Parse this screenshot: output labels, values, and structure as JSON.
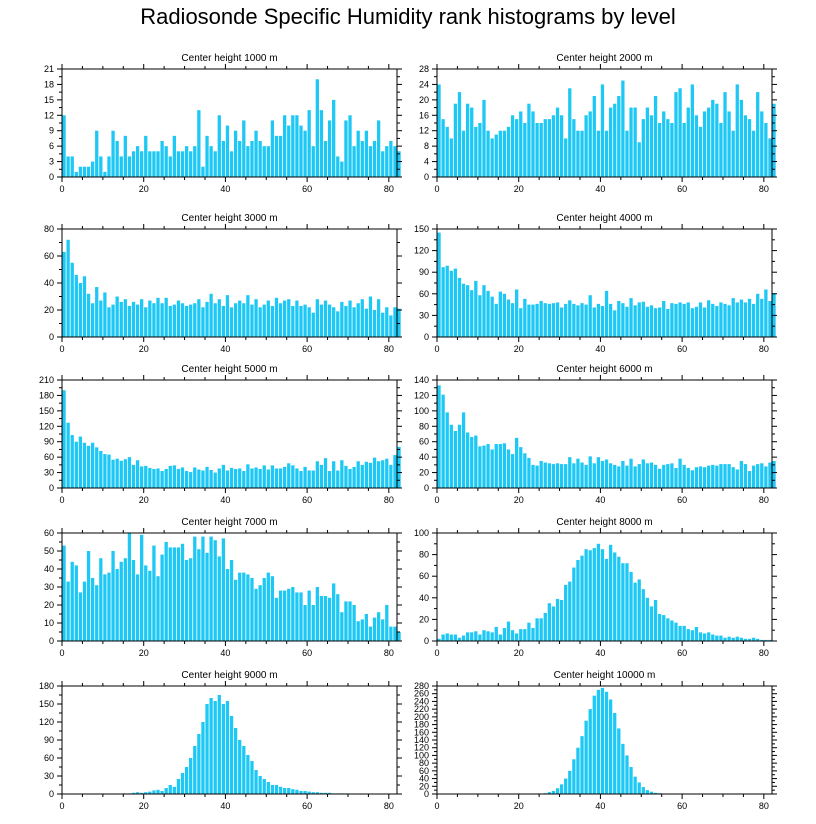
{
  "chart_data": {
    "type": "bar",
    "title": "Radiosonde Specific Humidity rank histograms by level",
    "colors": {
      "bar": "#1ec8f5",
      "axis": "#000000"
    },
    "xlim": [
      0,
      82
    ],
    "xticks": [
      0,
      20,
      40,
      60,
      80
    ],
    "panels": [
      {
        "title": "Center height 1000 m",
        "ylim": [
          0,
          21
        ],
        "yticks": [
          0,
          3,
          6,
          9,
          12,
          15,
          18,
          21
        ],
        "values": [
          12,
          4,
          4,
          1,
          2,
          2,
          2,
          3,
          9,
          4,
          1,
          4,
          9,
          7,
          4,
          8,
          4,
          5,
          6,
          5,
          8,
          5,
          5,
          5,
          7,
          6,
          4,
          8,
          5,
          5,
          6,
          5,
          6,
          13,
          2,
          8,
          6,
          5,
          12,
          7,
          10,
          5,
          9,
          7,
          11,
          6,
          7,
          9,
          7,
          6,
          6,
          11,
          8,
          8,
          12,
          10,
          12,
          12,
          10,
          9,
          13,
          6,
          19,
          13,
          7,
          11,
          15,
          4,
          3,
          11,
          12,
          6,
          9,
          7,
          9,
          6,
          7,
          11,
          5,
          6,
          7,
          6,
          5
        ]
      },
      {
        "title": "Center height 2000 m",
        "ylim": [
          0,
          28
        ],
        "yticks": [
          0,
          4,
          8,
          12,
          16,
          20,
          24,
          28
        ],
        "values": [
          24,
          15,
          13,
          10,
          19,
          22,
          12,
          19,
          18,
          13,
          14,
          20,
          12,
          10,
          11,
          12,
          12,
          13,
          16,
          15,
          17,
          14,
          19,
          17,
          14,
          14,
          15,
          15,
          16,
          18,
          16,
          10,
          23,
          15,
          12,
          12,
          16,
          17,
          21,
          12,
          24,
          12,
          18,
          19,
          21,
          25,
          12,
          18,
          18,
          9,
          15,
          18,
          16,
          21,
          14,
          17,
          15,
          14,
          22,
          23,
          14,
          18,
          24,
          16,
          13,
          17,
          18,
          20,
          19,
          14,
          22,
          17,
          12,
          24,
          20,
          16,
          15,
          12,
          22,
          17,
          14,
          10,
          19
        ]
      },
      {
        "title": "Center height 3000 m",
        "ylim": [
          0,
          80
        ],
        "yticks": [
          0,
          20,
          40,
          60,
          80
        ],
        "values": [
          63,
          72,
          55,
          46,
          40,
          45,
          32,
          25,
          37,
          27,
          33,
          22,
          24,
          30,
          26,
          28,
          23,
          26,
          24,
          28,
          22,
          27,
          25,
          29,
          25,
          29,
          23,
          24,
          27,
          25,
          23,
          24,
          25,
          28,
          22,
          26,
          32,
          25,
          28,
          23,
          31,
          22,
          25,
          27,
          25,
          31,
          24,
          28,
          22,
          24,
          27,
          23,
          29,
          25,
          27,
          28,
          23,
          27,
          23,
          24,
          22,
          18,
          28,
          24,
          27,
          24,
          22,
          19,
          26,
          23,
          27,
          22,
          25,
          28,
          21,
          30,
          20,
          28,
          18,
          22,
          16,
          22,
          21
        ]
      },
      {
        "title": "Center height 4000 m",
        "ylim": [
          0,
          150
        ],
        "yticks": [
          0,
          30,
          60,
          90,
          120,
          150
        ],
        "values": [
          145,
          97,
          99,
          92,
          95,
          82,
          74,
          72,
          65,
          78,
          58,
          72,
          64,
          56,
          46,
          63,
          60,
          52,
          47,
          66,
          40,
          53,
          45,
          45,
          46,
          50,
          47,
          46,
          47,
          48,
          41,
          46,
          51,
          46,
          44,
          47,
          45,
          58,
          41,
          46,
          43,
          64,
          46,
          37,
          50,
          47,
          42,
          54,
          44,
          48,
          49,
          42,
          44,
          40,
          41,
          50,
          39,
          47,
          46,
          48,
          46,
          48,
          40,
          42,
          48,
          41,
          51,
          46,
          43,
          48,
          46,
          44,
          54,
          48,
          52,
          48,
          53,
          46,
          60,
          53,
          66,
          50,
          61
        ]
      },
      {
        "title": "Center height 5000 m",
        "ylim": [
          0,
          210
        ],
        "yticks": [
          0,
          30,
          60,
          90,
          120,
          150,
          180,
          210
        ],
        "values": [
          190,
          127,
          103,
          90,
          100,
          88,
          82,
          88,
          79,
          72,
          66,
          65,
          55,
          57,
          53,
          56,
          60,
          45,
          54,
          42,
          43,
          39,
          37,
          38,
          33,
          37,
          43,
          44,
          37,
          40,
          33,
          31,
          40,
          36,
          34,
          41,
          35,
          30,
          38,
          45,
          34,
          39,
          37,
          38,
          33,
          46,
          38,
          40,
          37,
          44,
          36,
          44,
          38,
          38,
          41,
          48,
          44,
          38,
          33,
          41,
          34,
          34,
          52,
          45,
          58,
          33,
          52,
          34,
          54,
          43,
          37,
          41,
          52,
          45,
          51,
          49,
          59,
          52,
          54,
          57,
          45,
          64,
          80
        ]
      },
      {
        "title": "Center height 6000 m",
        "ylim": [
          0,
          140
        ],
        "yticks": [
          0,
          20,
          40,
          60,
          80,
          100,
          120,
          140
        ],
        "values": [
          133,
          121,
          98,
          82,
          74,
          82,
          98,
          72,
          66,
          68,
          54,
          55,
          57,
          50,
          57,
          57,
          58,
          50,
          44,
          65,
          53,
          45,
          39,
          30,
          29,
          35,
          33,
          32,
          31,
          32,
          31,
          31,
          40,
          32,
          38,
          33,
          30,
          41,
          32,
          40,
          35,
          37,
          32,
          30,
          28,
          35,
          29,
          38,
          28,
          31,
          37,
          32,
          33,
          30,
          25,
          30,
          31,
          32,
          26,
          38,
          30,
          26,
          23,
          27,
          28,
          27,
          29,
          30,
          29,
          31,
          31,
          31,
          27,
          24,
          35,
          31,
          22,
          29,
          31,
          32,
          28,
          33,
          35
        ]
      },
      {
        "title": "Center height 7000 m",
        "ylim": [
          0,
          60
        ],
        "yticks": [
          0,
          10,
          20,
          30,
          40,
          50,
          60
        ],
        "values": [
          53,
          33,
          44,
          42,
          27,
          33,
          50,
          35,
          31,
          46,
          37,
          38,
          50,
          40,
          44,
          46,
          60,
          45,
          37,
          59,
          42,
          39,
          53,
          36,
          48,
          55,
          52,
          52,
          52,
          54,
          45,
          46,
          58,
          51,
          58,
          49,
          58,
          56,
          47,
          57,
          40,
          45,
          34,
          38,
          38,
          37,
          35,
          29,
          31,
          35,
          38,
          36,
          24,
          28,
          28,
          29,
          30,
          27,
          27,
          20,
          28,
          20,
          30,
          25,
          25,
          24,
          32,
          26,
          16,
          22,
          22,
          20,
          11,
          12,
          15,
          8,
          13,
          16,
          12,
          20,
          8,
          8,
          5
        ]
      },
      {
        "title": "Center height 8000 m",
        "ylim": [
          0,
          100
        ],
        "yticks": [
          0,
          20,
          40,
          60,
          80,
          100
        ],
        "values": [
          2,
          6,
          7,
          6,
          6,
          3,
          5,
          8,
          8,
          9,
          6,
          10,
          9,
          8,
          13,
          6,
          12,
          18,
          10,
          7,
          11,
          11,
          17,
          12,
          21,
          21,
          26,
          35,
          32,
          39,
          38,
          52,
          55,
          68,
          75,
          79,
          85,
          84,
          86,
          90,
          85,
          76,
          89,
          82,
          78,
          72,
          72,
          64,
          54,
          57,
          48,
          40,
          32,
          38,
          25,
          24,
          21,
          19,
          17,
          14,
          14,
          11,
          10,
          13,
          8,
          7,
          8,
          6,
          5,
          5,
          3,
          4,
          3,
          4,
          3,
          2,
          2,
          3,
          2,
          1,
          1,
          1
        ]
      },
      {
        "title": "Center height 9000 m",
        "ylim": [
          0,
          180
        ],
        "yticks": [
          0,
          30,
          60,
          90,
          120,
          150,
          180
        ],
        "values": [
          0,
          0,
          0,
          0,
          0,
          0,
          0,
          0,
          0,
          0,
          0,
          0,
          0,
          0,
          0,
          1,
          1,
          2,
          3,
          2,
          3,
          4,
          6,
          7,
          5,
          10,
          15,
          12,
          25,
          35,
          45,
          60,
          80,
          100,
          120,
          150,
          160,
          155,
          165,
          150,
          155,
          130,
          110,
          90,
          80,
          65,
          55,
          40,
          30,
          25,
          20,
          15,
          15,
          12,
          10,
          10,
          8,
          7,
          5,
          5,
          4,
          3,
          3,
          2,
          2,
          2,
          1,
          1,
          1,
          1,
          0,
          0,
          0,
          0,
          0,
          0,
          0,
          0,
          0,
          0,
          0,
          0,
          0
        ]
      },
      {
        "title": "Center height 10000 m",
        "ylim": [
          0,
          280
        ],
        "yticks": [
          0,
          20,
          40,
          60,
          80,
          100,
          120,
          140,
          160,
          180,
          200,
          220,
          240,
          260,
          280
        ],
        "values": [
          0,
          0,
          0,
          0,
          0,
          0,
          0,
          0,
          0,
          0,
          0,
          0,
          0,
          0,
          0,
          0,
          0,
          0,
          0,
          0,
          0,
          0,
          0,
          0,
          0,
          1,
          2,
          5,
          8,
          15,
          25,
          40,
          60,
          90,
          120,
          150,
          190,
          220,
          255,
          270,
          275,
          265,
          245,
          210,
          170,
          130,
          100,
          70,
          45,
          30,
          18,
          10,
          6,
          3,
          2,
          1,
          0,
          0,
          0,
          0,
          0,
          0,
          0,
          0,
          0,
          0,
          0,
          0,
          0,
          0,
          0,
          0,
          0,
          0,
          0,
          0,
          0,
          0,
          0,
          0,
          0,
          0,
          0
        ]
      }
    ]
  }
}
